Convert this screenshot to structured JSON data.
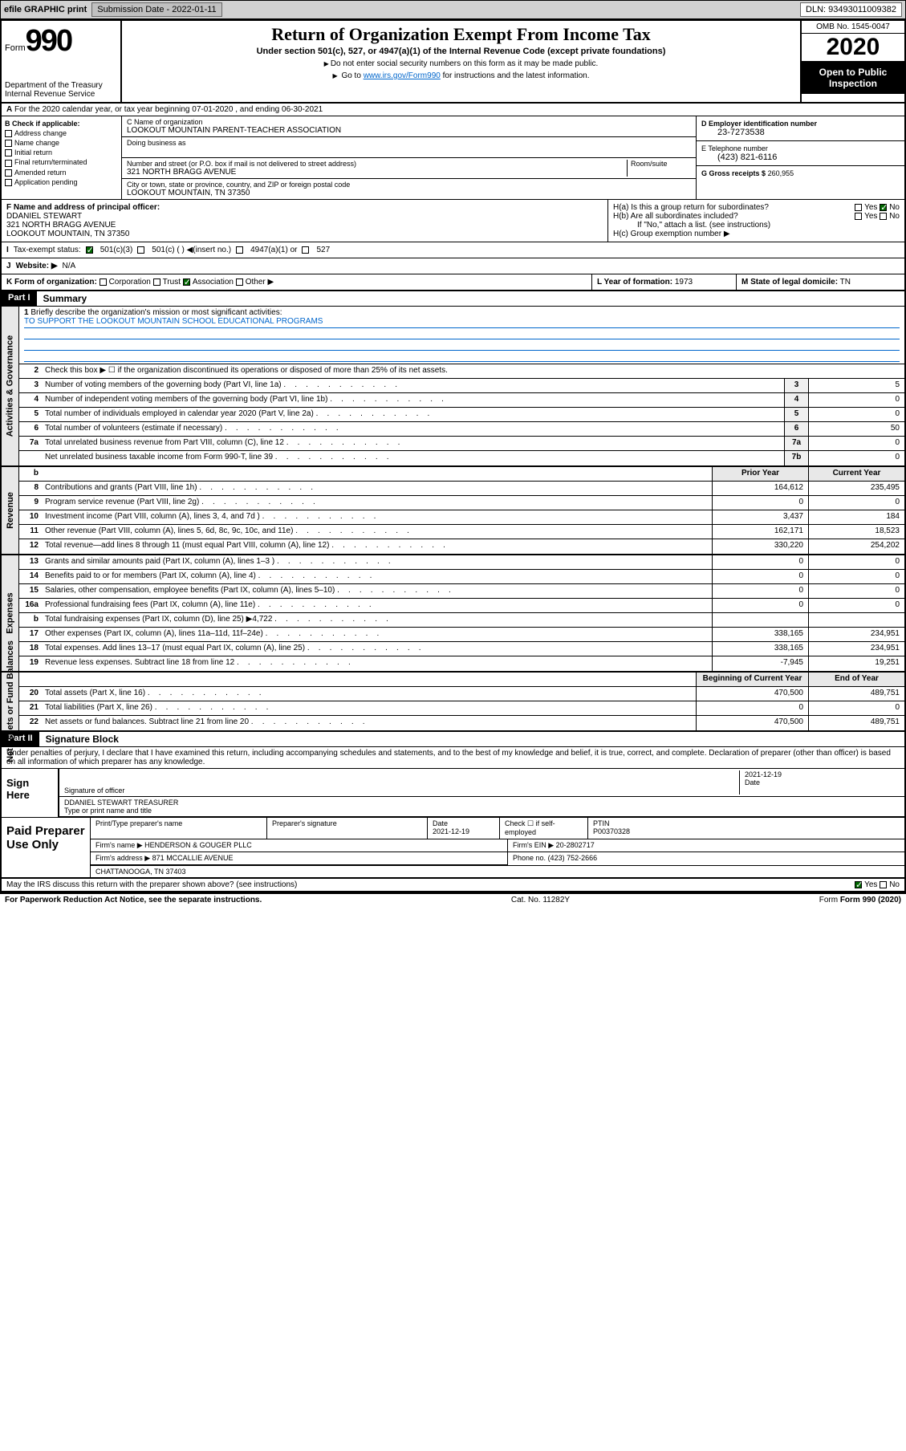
{
  "topbar": {
    "efile": "efile GRAPHIC print",
    "subdate_k": "Submission Date - 2022-01-11",
    "dln_k": "DLN: 93493011009382"
  },
  "header": {
    "form": "Form",
    "num": "990",
    "dept": "Department of the Treasury\nInternal Revenue Service",
    "title": "Return of Organization Exempt From Income Tax",
    "sub": "Under section 501(c), 527, or 4947(a)(1) of the Internal Revenue Code (except private foundations)",
    "note1": "Do not enter social security numbers on this form as it may be made public.",
    "note2_a": "Go to ",
    "note2_link": "www.irs.gov/Form990",
    "note2_b": " for instructions and the latest information.",
    "omb": "OMB No. 1545-0047",
    "year": "2020",
    "inspection": "Open to Public Inspection"
  },
  "rowA": "For the 2020 calendar year, or tax year beginning 07-01-2020    , and ending 06-30-2021",
  "boxB": {
    "hdr": "B Check if applicable:",
    "items": [
      "Address change",
      "Name change",
      "Initial return",
      "Final return/terminated",
      "Amended return",
      "Application pending"
    ]
  },
  "boxC": {
    "name_lbl": "C Name of organization",
    "name": "LOOKOUT MOUNTAIN PARENT-TEACHER ASSOCIATION",
    "dba": "Doing business as",
    "addr_lbl": "Number and street (or P.O. box if mail is not delivered to street address)",
    "room": "Room/suite",
    "addr": "321 NORTH BRAGG AVENUE",
    "city_lbl": "City or town, state or province, country, and ZIP or foreign postal code",
    "city": "LOOKOUT MOUNTAIN, TN  37350"
  },
  "boxD": {
    "lbl": "D Employer identification number",
    "val": "23-7273538"
  },
  "boxE": {
    "lbl": "E Telephone number",
    "val": "(423) 821-6116"
  },
  "boxG": {
    "lbl": "G Gross receipts $",
    "val": "260,955"
  },
  "boxF": {
    "lbl": "F  Name and address of principal officer:",
    "name": "DDANIEL STEWART",
    "addr": "321 NORTH BRAGG AVENUE",
    "city": "LOOKOUT MOUNTAIN, TN  37350"
  },
  "boxH": {
    "a": "H(a)  Is this a group return for subordinates?",
    "b": "H(b)  Are all subordinates included?",
    "bnote": "If \"No,\" attach a list. (see instructions)",
    "c": "H(c)  Group exemption number ▶"
  },
  "rowI": {
    "lbl": "Tax-exempt status:",
    "opts": [
      "501(c)(3)",
      "501(c) (  ) ◀(insert no.)",
      "4947(a)(1) or",
      "527"
    ]
  },
  "rowJ": {
    "lbl": "Website: ▶",
    "val": "N/A"
  },
  "rowK": {
    "lbl": "K Form of organization:",
    "opts": [
      "Corporation",
      "Trust",
      "Association",
      "Other ▶"
    ]
  },
  "rowL": {
    "lbl": "L Year of formation:",
    "val": "1973"
  },
  "rowM": {
    "lbl": "M State of legal domicile:",
    "val": "TN"
  },
  "part1": {
    "hdr": "Part I",
    "title": "Summary",
    "q1": "Briefly describe the organization's mission or most significant activities:",
    "mission": "TO SUPPORT THE LOOKOUT MOUNTAIN SCHOOL EDUCATIONAL PROGRAMS",
    "q2": "Check this box ▶ ☐  if the organization discontinued its operations or disposed of more than 25% of its net assets.",
    "lines_gov": [
      {
        "n": "3",
        "t": "Number of voting members of the governing body (Part VI, line 1a)",
        "b": "3",
        "v": "5"
      },
      {
        "n": "4",
        "t": "Number of independent voting members of the governing body (Part VI, line 1b)",
        "b": "4",
        "v": "0"
      },
      {
        "n": "5",
        "t": "Total number of individuals employed in calendar year 2020 (Part V, line 2a)",
        "b": "5",
        "v": "0"
      },
      {
        "n": "6",
        "t": "Total number of volunteers (estimate if necessary)",
        "b": "6",
        "v": "50"
      },
      {
        "n": "7a",
        "t": "Total unrelated business revenue from Part VIII, column (C), line 12",
        "b": "7a",
        "v": "0"
      },
      {
        "n": "",
        "t": "Net unrelated business taxable income from Form 990-T, line 39",
        "b": "7b",
        "v": "0"
      }
    ],
    "hdr_prior": "Prior Year",
    "hdr_curr": "Current Year",
    "lines_rev": [
      {
        "n": "8",
        "t": "Contributions and grants (Part VIII, line 1h)",
        "p": "164,612",
        "c": "235,495"
      },
      {
        "n": "9",
        "t": "Program service revenue (Part VIII, line 2g)",
        "p": "0",
        "c": "0"
      },
      {
        "n": "10",
        "t": "Investment income (Part VIII, column (A), lines 3, 4, and 7d )",
        "p": "3,437",
        "c": "184"
      },
      {
        "n": "11",
        "t": "Other revenue (Part VIII, column (A), lines 5, 6d, 8c, 9c, 10c, and 11e)",
        "p": "162,171",
        "c": "18,523"
      },
      {
        "n": "12",
        "t": "Total revenue—add lines 8 through 11 (must equal Part VIII, column (A), line 12)",
        "p": "330,220",
        "c": "254,202"
      }
    ],
    "lines_exp": [
      {
        "n": "13",
        "t": "Grants and similar amounts paid (Part IX, column (A), lines 1–3 )",
        "p": "0",
        "c": "0"
      },
      {
        "n": "14",
        "t": "Benefits paid to or for members (Part IX, column (A), line 4)",
        "p": "0",
        "c": "0"
      },
      {
        "n": "15",
        "t": "Salaries, other compensation, employee benefits (Part IX, column (A), lines 5–10)",
        "p": "0",
        "c": "0"
      },
      {
        "n": "16a",
        "t": "Professional fundraising fees (Part IX, column (A), line 11e)",
        "p": "0",
        "c": "0"
      },
      {
        "n": "b",
        "t": "Total fundraising expenses (Part IX, column (D), line 25) ▶4,722",
        "p": "",
        "c": ""
      },
      {
        "n": "17",
        "t": "Other expenses (Part IX, column (A), lines 11a–11d, 11f–24e)",
        "p": "338,165",
        "c": "234,951"
      },
      {
        "n": "18",
        "t": "Total expenses. Add lines 13–17 (must equal Part IX, column (A), line 25)",
        "p": "338,165",
        "c": "234,951"
      },
      {
        "n": "19",
        "t": "Revenue less expenses. Subtract line 18 from line 12",
        "p": "-7,945",
        "c": "19,251"
      }
    ],
    "hdr_beg": "Beginning of Current Year",
    "hdr_end": "End of Year",
    "lines_net": [
      {
        "n": "20",
        "t": "Total assets (Part X, line 16)",
        "p": "470,500",
        "c": "489,751"
      },
      {
        "n": "21",
        "t": "Total liabilities (Part X, line 26)",
        "p": "0",
        "c": "0"
      },
      {
        "n": "22",
        "t": "Net assets or fund balances. Subtract line 21 from line 20",
        "p": "470,500",
        "c": "489,751"
      }
    ]
  },
  "part2": {
    "hdr": "Part II",
    "title": "Signature Block",
    "decl": "Under penalties of perjury, I declare that I have examined this return, including accompanying schedules and statements, and to the best of my knowledge and belief, it is true, correct, and complete. Declaration of preparer (other than officer) is based on all information of which preparer has any knowledge."
  },
  "sign": {
    "lbl": "Sign Here",
    "sig": "Signature of officer",
    "date_lbl": "Date",
    "date": "2021-12-19",
    "name": "DDANIEL STEWART  TREASURER",
    "name_lbl": "Type or print name and title"
  },
  "prep": {
    "lbl": "Paid Preparer Use Only",
    "h1": "Print/Type preparer's name",
    "h2": "Preparer's signature",
    "h3": "Date",
    "h3v": "2021-12-19",
    "h4": "Check ☐ if self-employed",
    "h5": "PTIN",
    "h5v": "P00370328",
    "firm_lbl": "Firm's name    ▶",
    "firm": "HENDERSON & GOUGER PLLC",
    "ein_lbl": "Firm's EIN ▶",
    "ein": "20-2802717",
    "addr_lbl": "Firm's address ▶",
    "addr": "871 MCCALLIE AVENUE",
    "city": "CHATTANOOGA, TN  37403",
    "phone_lbl": "Phone no.",
    "phone": "(423) 752-2666"
  },
  "discuss": "May the IRS discuss this return with the preparer shown above? (see instructions)",
  "footer": {
    "l": "For Paperwork Reduction Act Notice, see the separate instructions.",
    "c": "Cat. No. 11282Y",
    "r": "Form 990 (2020)"
  },
  "yn": {
    "yes": "Yes",
    "no": "No"
  }
}
